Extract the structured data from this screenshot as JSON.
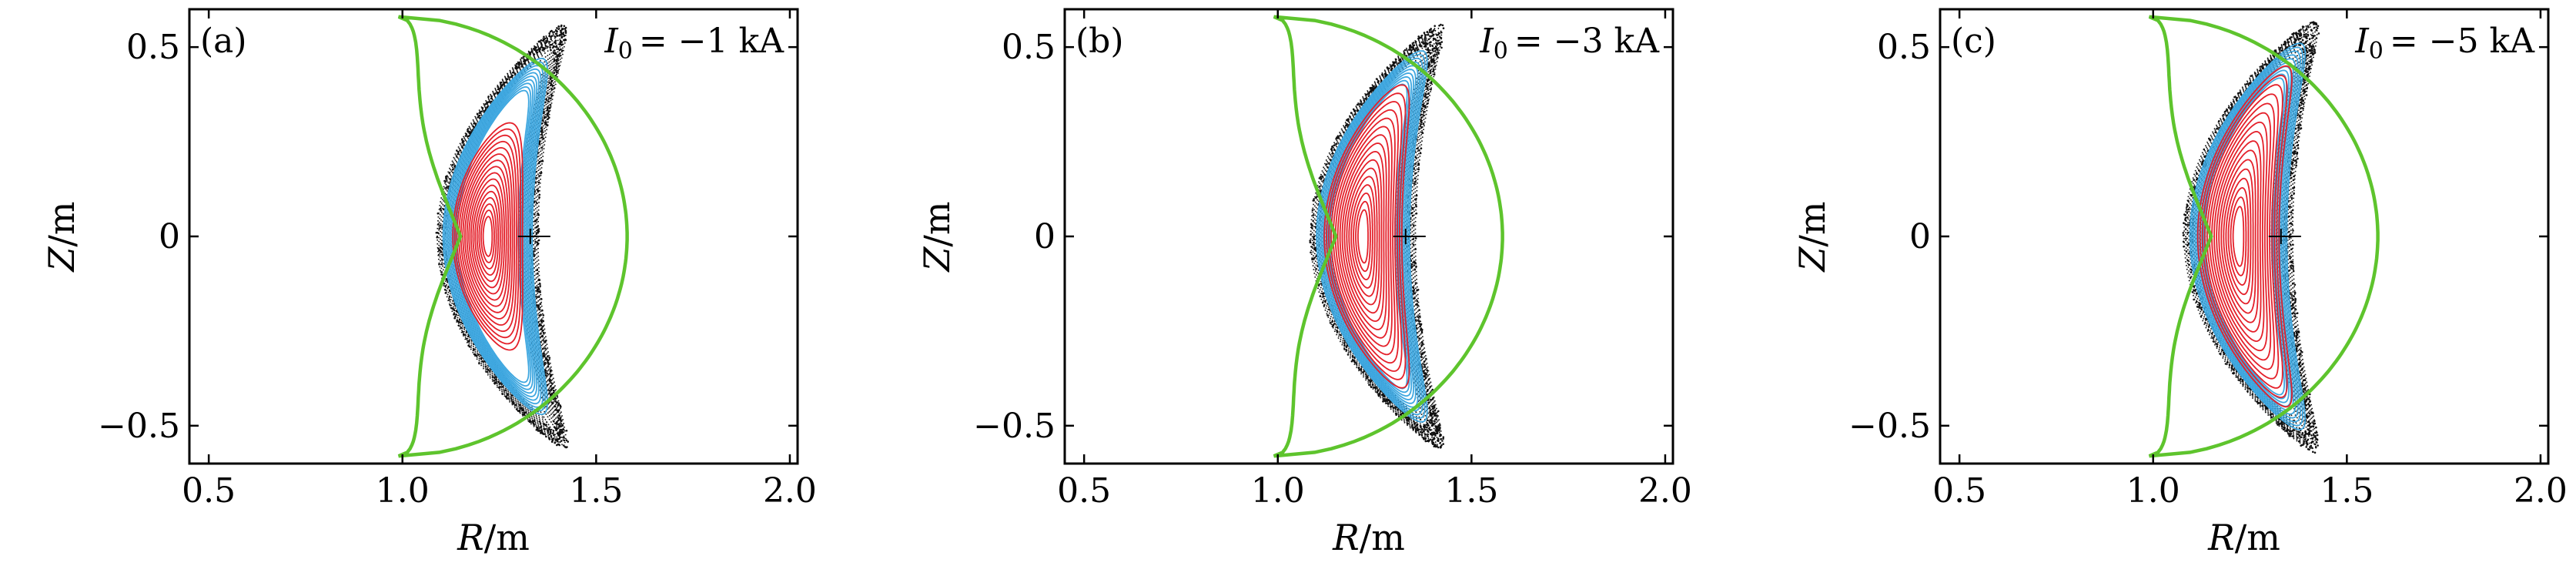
{
  "figure": {
    "colors": {
      "boundary": "#5ec42d",
      "core": "#e4202a",
      "middle": "#3ea7e0",
      "outer": "#111111"
    }
  },
  "chart_data": [
    {
      "type": "scatter",
      "panel_tag": "(a)",
      "current_label": {
        "symbol": "I",
        "subscript": "0",
        "value": "= −1 kA"
      },
      "xlabel": {
        "var": "R",
        "unit": "/m"
      },
      "ylabel": {
        "var": "Z",
        "unit": "/m"
      },
      "xlim": [
        0.45,
        2.02
      ],
      "ylim": [
        -0.6,
        0.6
      ],
      "xticks": [
        0.5,
        1.0,
        1.5,
        2.0
      ],
      "xtick_labels": [
        "0.5",
        "1.0",
        "1.5",
        "2.0"
      ],
      "yticks": [
        -0.5,
        0,
        0.5
      ],
      "ytick_labels": [
        "−0.5",
        "0",
        "0.5"
      ],
      "magnetic_axis": [
        1.33,
        0
      ],
      "boundary_series": {
        "name": "",
        "r_center": 1.25,
        "r_half_width": 0.33,
        "height": 0.58,
        "bend": 0.29
      },
      "core_region": {
        "r_center": 1.24,
        "z_extent": 0.3,
        "half_width": 0.09
      },
      "middle_region": {
        "z_extent": 0.47,
        "half_width": 0.115
      },
      "outer_region": {
        "z_extent": 0.55,
        "half_width": 0.13
      }
    },
    {
      "type": "scatter",
      "panel_tag": "(b)",
      "current_label": {
        "symbol": "I",
        "subscript": "0",
        "value": "= −3 kA"
      },
      "xlabel": {
        "var": "R",
        "unit": "/m"
      },
      "ylabel": {
        "var": "Z",
        "unit": "/m"
      },
      "xlim": [
        0.45,
        2.02
      ],
      "ylim": [
        -0.6,
        0.6
      ],
      "xticks": [
        0.5,
        1.0,
        1.5,
        2.0
      ],
      "xtick_labels": [
        "0.5",
        "1.0",
        "1.5",
        "2.0"
      ],
      "yticks": [
        -0.5,
        0,
        0.5
      ],
      "ytick_labels": [
        "−0.5",
        "0",
        "0.5"
      ],
      "magnetic_axis": [
        1.33,
        0
      ],
      "boundary_series": {
        "name": "",
        "r_center": 1.25,
        "r_half_width": 0.33,
        "height": 0.58,
        "bend": 0.29
      },
      "core_region": {
        "r_center": 1.24,
        "z_extent": 0.4,
        "half_width": 0.1
      },
      "middle_region": {
        "z_extent": 0.49,
        "half_width": 0.12
      },
      "outer_region": {
        "z_extent": 0.55,
        "half_width": 0.135
      }
    },
    {
      "type": "scatter",
      "panel_tag": "(c)",
      "current_label": {
        "symbol": "I",
        "subscript": "0",
        "value": "= −5 kA"
      },
      "xlabel": {
        "var": "R",
        "unit": "/m"
      },
      "ylabel": {
        "var": "Z",
        "unit": "/m"
      },
      "xlim": [
        0.45,
        2.02
      ],
      "ylim": [
        -0.6,
        0.6
      ],
      "xticks": [
        0.5,
        1.0,
        1.5,
        2.0
      ],
      "xtick_labels": [
        "0.5",
        "1.0",
        "1.5",
        "2.0"
      ],
      "yticks": [
        -0.5,
        0,
        0.5
      ],
      "ytick_labels": [
        "−0.5",
        "0",
        "0.5"
      ],
      "magnetic_axis": [
        1.33,
        0
      ],
      "boundary_series": {
        "name": "",
        "r_center": 1.25,
        "r_half_width": 0.33,
        "height": 0.58,
        "bend": 0.29
      },
      "core_region": {
        "r_center": 1.24,
        "z_extent": 0.45,
        "half_width": 0.105
      },
      "middle_region": {
        "z_extent": 0.51,
        "half_width": 0.125
      },
      "outer_region": {
        "z_extent": 0.56,
        "half_width": 0.14
      }
    }
  ]
}
